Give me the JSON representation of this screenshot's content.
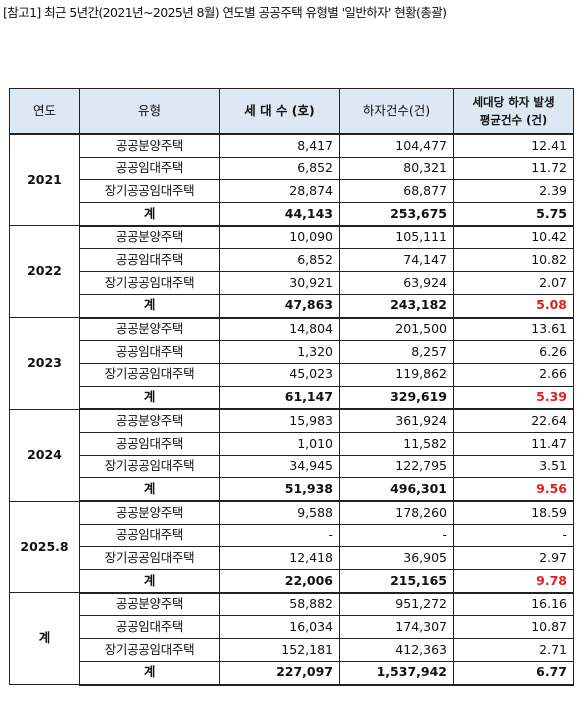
{
  "title": "[참고1] 최근 5년간(2021년~2025년 8월) 연도별 공공주택 유형별 '일반하자' 현황(총괄)",
  "headers": {
    "year": "연도",
    "type": "유형",
    "households": "세 대 수 (호)",
    "defects": "하자건수(건)",
    "avg_line1": "세대당 하자 발생",
    "avg_line2": "평균건수 (건)"
  },
  "groups": [
    {
      "year": "2021",
      "rows": [
        {
          "type": "공공분양주택",
          "households": "8,417",
          "defects": "104,477",
          "avg": "12.41"
        },
        {
          "type": "공공임대주택",
          "households": "6,852",
          "defects": "80,321",
          "avg": "11.72"
        },
        {
          "type": "장기공공임대주택",
          "households": "28,874",
          "defects": "68,877",
          "avg": "2.39"
        },
        {
          "type": "계",
          "households": "44,143",
          "defects": "253,675",
          "avg": "5.75"
        }
      ]
    },
    {
      "year": "2022",
      "rows": [
        {
          "type": "공공분양주택",
          "households": "10,090",
          "defects": "105,111",
          "avg": "10.42"
        },
        {
          "type": "공공임대주택",
          "households": "6,852",
          "defects": "74,147",
          "avg": "10.82"
        },
        {
          "type": "장기공공임대주택",
          "households": "30,921",
          "defects": "63,924",
          "avg": "2.07"
        },
        {
          "type": "계",
          "households": "47,863",
          "defects": "243,182",
          "avg": "5.08"
        }
      ]
    },
    {
      "year": "2023",
      "rows": [
        {
          "type": "공공분양주택",
          "households": "14,804",
          "defects": "201,500",
          "avg": "13.61"
        },
        {
          "type": "공공임대주택",
          "households": "1,320",
          "defects": "8,257",
          "avg": "6.26"
        },
        {
          "type": "장기공공임대주택",
          "households": "45,023",
          "defects": "119,862",
          "avg": "2.66"
        },
        {
          "type": "계",
          "households": "61,147",
          "defects": "329,619",
          "avg": "5.39"
        }
      ]
    },
    {
      "year": "2024",
      "rows": [
        {
          "type": "공공분양주택",
          "households": "15,983",
          "defects": "361,924",
          "avg": "22.64"
        },
        {
          "type": "공공임대주택",
          "households": "1,010",
          "defects": "11,582",
          "avg": "11.47"
        },
        {
          "type": "장기공공임대주택",
          "households": "34,945",
          "defects": "122,795",
          "avg": "3.51"
        },
        {
          "type": "계",
          "households": "51,938",
          "defects": "496,301",
          "avg": "9.56"
        }
      ]
    },
    {
      "year": "2025.8",
      "rows": [
        {
          "type": "공공분양주택",
          "households": "9,588",
          "defects": "178,260",
          "avg": "18.59"
        },
        {
          "type": "공공임대주택",
          "households": "-",
          "defects": "-",
          "avg": "-"
        },
        {
          "type": "장기공공임대주택",
          "households": "12,418",
          "defects": "36,905",
          "avg": "2.97"
        },
        {
          "type": "계",
          "households": "22,006",
          "defects": "215,165",
          "avg": "9.78"
        }
      ]
    },
    {
      "year": "계",
      "rows": [
        {
          "type": "공공분양주택",
          "households": "58,882",
          "defects": "951,272",
          "avg": "16.16"
        },
        {
          "type": "공공임대주택",
          "households": "16,034",
          "defects": "174,307",
          "avg": "10.87"
        },
        {
          "type": "장기공공임대주택",
          "households": "152,181",
          "defects": "412,363",
          "avg": "2.71"
        },
        {
          "type": "계",
          "households": "227,097",
          "defects": "1,537,942",
          "avg": "6.77"
        }
      ]
    }
  ],
  "highlight_color": "#e0201f",
  "highlight_years": [
    "2022",
    "2023",
    "2024",
    "2025.8"
  ]
}
